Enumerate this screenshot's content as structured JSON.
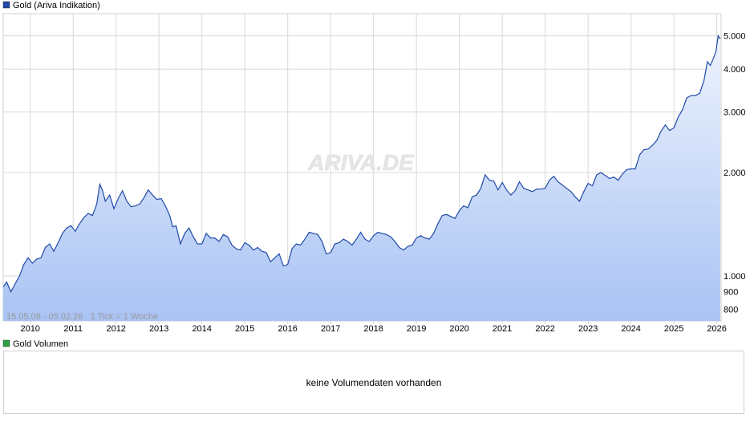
{
  "chart_data": {
    "type": "area",
    "legend": {
      "label": "Gold (Ariva Indikation)",
      "color": "#1f4aa8",
      "placement": "top-left"
    },
    "watermark": "ARIVA.DE",
    "info": "15.05.09 - 05.02.26   1 Tick = 1 Woche",
    "x_ticks": [
      "2010",
      "2011",
      "2012",
      "2013",
      "2014",
      "2015",
      "2016",
      "2017",
      "2018",
      "2019",
      "2020",
      "2021",
      "2022",
      "2023",
      "2024",
      "2025",
      "2026"
    ],
    "y_ticks": [
      {
        "value": 800,
        "label": "800"
      },
      {
        "value": 900,
        "label": "900"
      },
      {
        "value": 1000,
        "label": "1.000"
      },
      {
        "value": 2000,
        "label": "2.000"
      },
      {
        "value": 3000,
        "label": "3.000"
      },
      {
        "value": 4000,
        "label": "4.000"
      },
      {
        "value": 5000,
        "label": "5.000"
      }
    ],
    "y_scale": "log",
    "xlim": [
      2009.37,
      2026.1
    ],
    "ylim": [
      740,
      5800
    ],
    "grid": true,
    "line_color": "#1f4aa8",
    "fill_top_color": "#eef3fd",
    "fill_bottom_color": "#a9c3f4",
    "series": [
      {
        "name": "Gold (Ariva Indikation)",
        "points": [
          [
            2009.37,
            930
          ],
          [
            2009.45,
            960
          ],
          [
            2009.55,
            900
          ],
          [
            2009.65,
            950
          ],
          [
            2009.75,
            1000
          ],
          [
            2009.85,
            1080
          ],
          [
            2009.95,
            1130
          ],
          [
            2010.05,
            1090
          ],
          [
            2010.15,
            1120
          ],
          [
            2010.25,
            1130
          ],
          [
            2010.35,
            1210
          ],
          [
            2010.45,
            1240
          ],
          [
            2010.55,
            1180
          ],
          [
            2010.65,
            1250
          ],
          [
            2010.75,
            1330
          ],
          [
            2010.85,
            1380
          ],
          [
            2010.95,
            1400
          ],
          [
            2011.05,
            1350
          ],
          [
            2011.15,
            1420
          ],
          [
            2011.25,
            1480
          ],
          [
            2011.35,
            1520
          ],
          [
            2011.45,
            1500
          ],
          [
            2011.55,
            1620
          ],
          [
            2011.62,
            1850
          ],
          [
            2011.68,
            1780
          ],
          [
            2011.75,
            1650
          ],
          [
            2011.85,
            1720
          ],
          [
            2011.95,
            1570
          ],
          [
            2012.05,
            1680
          ],
          [
            2012.15,
            1770
          ],
          [
            2012.25,
            1650
          ],
          [
            2012.35,
            1590
          ],
          [
            2012.45,
            1600
          ],
          [
            2012.55,
            1620
          ],
          [
            2012.65,
            1690
          ],
          [
            2012.75,
            1780
          ],
          [
            2012.85,
            1720
          ],
          [
            2012.95,
            1670
          ],
          [
            2013.05,
            1680
          ],
          [
            2013.15,
            1600
          ],
          [
            2013.25,
            1500
          ],
          [
            2013.32,
            1390
          ],
          [
            2013.4,
            1400
          ],
          [
            2013.5,
            1240
          ],
          [
            2013.6,
            1330
          ],
          [
            2013.7,
            1380
          ],
          [
            2013.8,
            1300
          ],
          [
            2013.9,
            1240
          ],
          [
            2014.0,
            1240
          ],
          [
            2014.1,
            1330
          ],
          [
            2014.2,
            1290
          ],
          [
            2014.3,
            1290
          ],
          [
            2014.4,
            1260
          ],
          [
            2014.5,
            1320
          ],
          [
            2014.6,
            1300
          ],
          [
            2014.7,
            1230
          ],
          [
            2014.8,
            1200
          ],
          [
            2014.9,
            1190
          ],
          [
            2015.0,
            1250
          ],
          [
            2015.1,
            1230
          ],
          [
            2015.2,
            1190
          ],
          [
            2015.3,
            1210
          ],
          [
            2015.4,
            1180
          ],
          [
            2015.5,
            1170
          ],
          [
            2015.6,
            1100
          ],
          [
            2015.7,
            1130
          ],
          [
            2015.8,
            1160
          ],
          [
            2015.9,
            1070
          ],
          [
            2016.0,
            1080
          ],
          [
            2016.1,
            1200
          ],
          [
            2016.2,
            1240
          ],
          [
            2016.3,
            1230
          ],
          [
            2016.4,
            1280
          ],
          [
            2016.5,
            1340
          ],
          [
            2016.6,
            1330
          ],
          [
            2016.7,
            1320
          ],
          [
            2016.8,
            1260
          ],
          [
            2016.9,
            1160
          ],
          [
            2017.0,
            1170
          ],
          [
            2017.1,
            1240
          ],
          [
            2017.2,
            1250
          ],
          [
            2017.3,
            1280
          ],
          [
            2017.4,
            1260
          ],
          [
            2017.5,
            1230
          ],
          [
            2017.6,
            1280
          ],
          [
            2017.7,
            1340
          ],
          [
            2017.8,
            1280
          ],
          [
            2017.9,
            1260
          ],
          [
            2018.0,
            1310
          ],
          [
            2018.1,
            1340
          ],
          [
            2018.2,
            1330
          ],
          [
            2018.3,
            1320
          ],
          [
            2018.4,
            1300
          ],
          [
            2018.5,
            1260
          ],
          [
            2018.6,
            1210
          ],
          [
            2018.7,
            1190
          ],
          [
            2018.8,
            1220
          ],
          [
            2018.9,
            1230
          ],
          [
            2019.0,
            1290
          ],
          [
            2019.1,
            1310
          ],
          [
            2019.2,
            1290
          ],
          [
            2019.3,
            1280
          ],
          [
            2019.4,
            1330
          ],
          [
            2019.5,
            1420
          ],
          [
            2019.6,
            1500
          ],
          [
            2019.7,
            1510
          ],
          [
            2019.8,
            1490
          ],
          [
            2019.9,
            1470
          ],
          [
            2020.0,
            1550
          ],
          [
            2020.1,
            1600
          ],
          [
            2020.2,
            1580
          ],
          [
            2020.3,
            1700
          ],
          [
            2020.4,
            1720
          ],
          [
            2020.5,
            1800
          ],
          [
            2020.6,
            1970
          ],
          [
            2020.7,
            1900
          ],
          [
            2020.8,
            1890
          ],
          [
            2020.9,
            1780
          ],
          [
            2021.0,
            1870
          ],
          [
            2021.1,
            1780
          ],
          [
            2021.2,
            1720
          ],
          [
            2021.3,
            1770
          ],
          [
            2021.4,
            1880
          ],
          [
            2021.5,
            1800
          ],
          [
            2021.6,
            1780
          ],
          [
            2021.7,
            1760
          ],
          [
            2021.8,
            1790
          ],
          [
            2021.9,
            1790
          ],
          [
            2022.0,
            1800
          ],
          [
            2022.1,
            1900
          ],
          [
            2022.2,
            1950
          ],
          [
            2022.3,
            1880
          ],
          [
            2022.4,
            1840
          ],
          [
            2022.5,
            1800
          ],
          [
            2022.6,
            1760
          ],
          [
            2022.7,
            1700
          ],
          [
            2022.8,
            1650
          ],
          [
            2022.9,
            1760
          ],
          [
            2023.0,
            1860
          ],
          [
            2023.1,
            1830
          ],
          [
            2023.2,
            1970
          ],
          [
            2023.3,
            2000
          ],
          [
            2023.4,
            1960
          ],
          [
            2023.5,
            1920
          ],
          [
            2023.6,
            1940
          ],
          [
            2023.7,
            1900
          ],
          [
            2023.8,
            1980
          ],
          [
            2023.9,
            2040
          ],
          [
            2024.0,
            2050
          ],
          [
            2024.1,
            2050
          ],
          [
            2024.2,
            2250
          ],
          [
            2024.3,
            2330
          ],
          [
            2024.4,
            2340
          ],
          [
            2024.5,
            2400
          ],
          [
            2024.6,
            2480
          ],
          [
            2024.7,
            2640
          ],
          [
            2024.8,
            2750
          ],
          [
            2024.9,
            2650
          ],
          [
            2025.0,
            2700
          ],
          [
            2025.1,
            2900
          ],
          [
            2025.2,
            3050
          ],
          [
            2025.3,
            3300
          ],
          [
            2025.4,
            3350
          ],
          [
            2025.5,
            3350
          ],
          [
            2025.6,
            3400
          ],
          [
            2025.7,
            3700
          ],
          [
            2025.78,
            4200
          ],
          [
            2025.85,
            4100
          ],
          [
            2025.92,
            4300
          ],
          [
            2025.98,
            4500
          ],
          [
            2026.03,
            5000
          ],
          [
            2026.08,
            4900
          ]
        ]
      }
    ]
  },
  "volume_panel": {
    "legend": {
      "label": "Gold Volumen",
      "color": "#2ea043"
    },
    "message": "keine Volumendaten vorhanden"
  }
}
